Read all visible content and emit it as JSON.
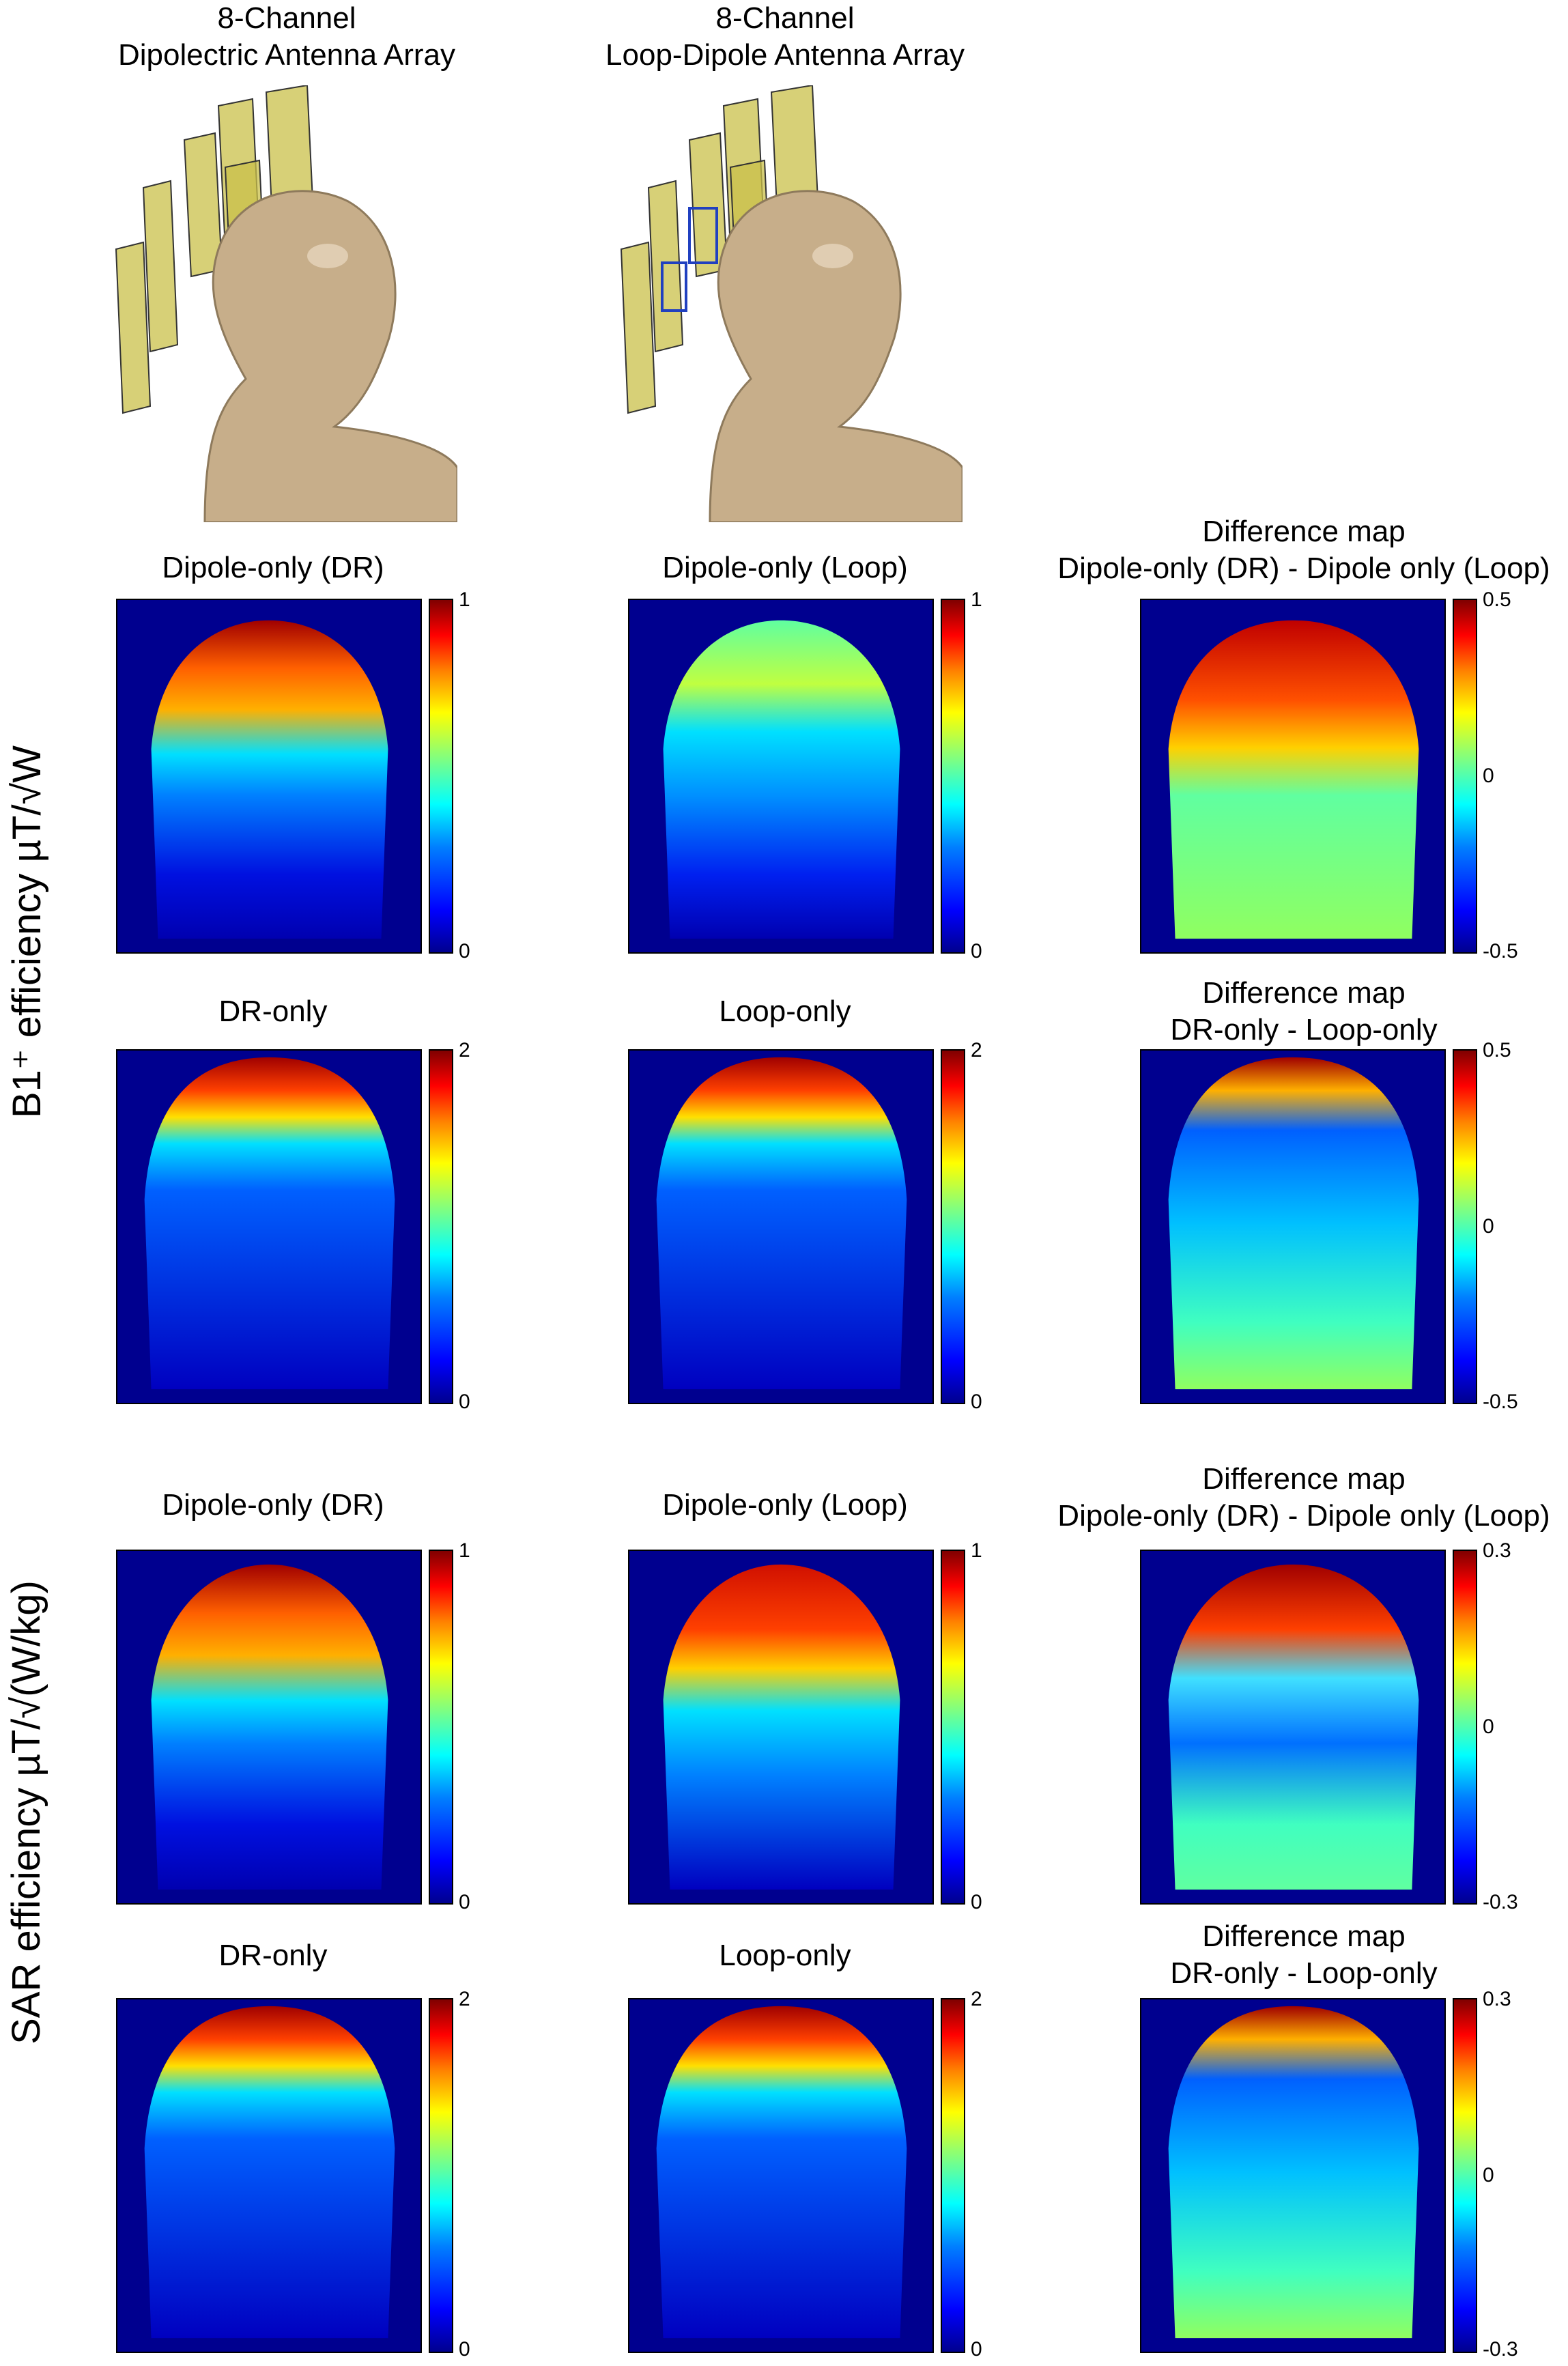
{
  "header": {
    "col1_line1": "8-Channel",
    "col1_line2": "Dipolectric Antenna Array",
    "col2_line1": "8-Channel",
    "col2_line2": "Loop-Dipole Antenna Array"
  },
  "row_labels": {
    "b1": "B1⁺ efficiency µT/√W",
    "sar": "SAR efficiency µT/√(W/kg)"
  },
  "panels": {
    "r1c1": "Dipole-only (DR)",
    "r1c2": "Dipole-only (Loop)",
    "r1c3_l1": "Difference map",
    "r1c3_l2": "Dipole-only (DR) - Dipole only (Loop)",
    "r2c1": "DR-only",
    "r2c2": "Loop-only",
    "r2c3_l1": "Difference map",
    "r2c3_l2": "DR-only - Loop-only",
    "r3c1": "Dipole-only (DR)",
    "r3c2": "Dipole-only (Loop)",
    "r3c3_l1": "Difference map",
    "r3c3_l2": "Dipole-only (DR) - Dipole only (Loop)",
    "r4c1": "DR-only",
    "r4c2": "Loop-only",
    "r4c3_l1": "Difference map",
    "r4c3_l2": "DR-only - Loop-only"
  },
  "colorbar_ticks": {
    "r1": {
      "top": "1",
      "bottom": "0",
      "diff_top": "0.5",
      "diff_mid": "0",
      "diff_bottom": "-0.5"
    },
    "r2": {
      "top": "2",
      "bottom": "0",
      "diff_top": "0.5",
      "diff_mid": "0",
      "diff_bottom": "-0.5"
    },
    "r3": {
      "top": "1",
      "bottom": "0",
      "diff_top": "0.3",
      "diff_mid": "0",
      "diff_bottom": "-0.3"
    },
    "r4": {
      "top": "2",
      "bottom": "0",
      "diff_top": "0.3",
      "diff_mid": "0",
      "diff_bottom": "-0.3"
    }
  },
  "colors": {
    "background_map": "#00008f",
    "skin": "#c7ae8a",
    "antenna": "#c9c04a"
  }
}
